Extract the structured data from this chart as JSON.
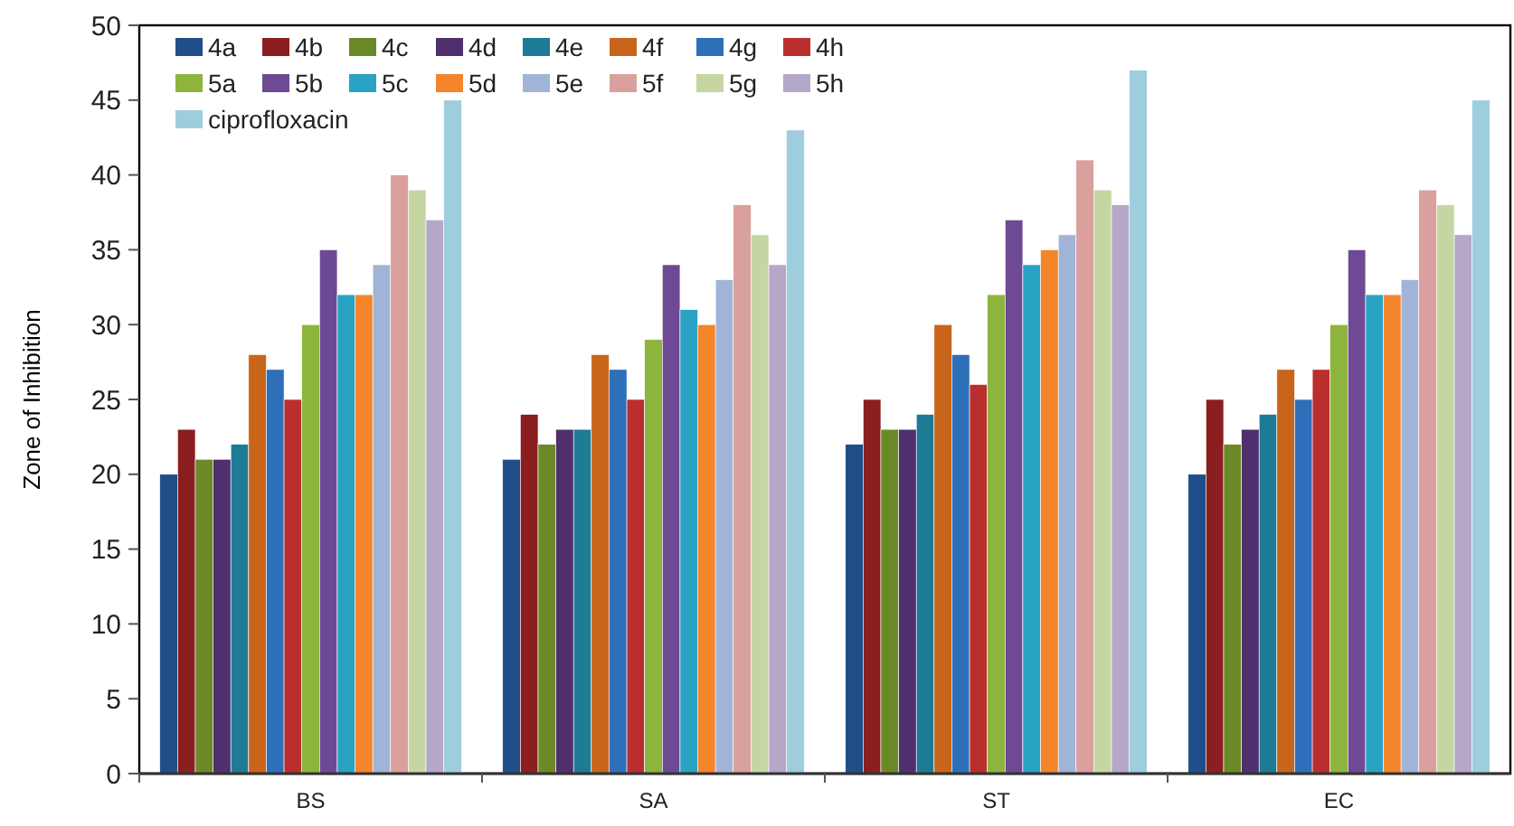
{
  "chart_data": {
    "type": "bar",
    "ylabel": "Zone of Inhibition",
    "categories": [
      "BS",
      "SA",
      "ST",
      "EC"
    ],
    "ylim": [
      0,
      50
    ],
    "yticks": [
      0,
      5,
      10,
      15,
      20,
      25,
      30,
      35,
      40,
      45,
      50
    ],
    "grid": false,
    "legend": "top left",
    "series": [
      {
        "name": "4a",
        "color": "#1f4e89",
        "values": [
          20,
          21,
          22,
          20
        ]
      },
      {
        "name": "4b",
        "color": "#8b1e1e",
        "values": [
          23,
          24,
          25,
          25
        ]
      },
      {
        "name": "4c",
        "color": "#6b8a27",
        "values": [
          21,
          22,
          23,
          22
        ]
      },
      {
        "name": "4d",
        "color": "#4f2f6e",
        "values": [
          21,
          23,
          23,
          23
        ]
      },
      {
        "name": "4e",
        "color": "#1e7b96",
        "values": [
          22,
          23,
          24,
          24
        ]
      },
      {
        "name": "4f",
        "color": "#c9651a",
        "values": [
          28,
          28,
          30,
          27
        ]
      },
      {
        "name": "4g",
        "color": "#2e6fba",
        "values": [
          27,
          27,
          28,
          25
        ]
      },
      {
        "name": "4h",
        "color": "#bb2e2e",
        "values": [
          25,
          25,
          26,
          27
        ]
      },
      {
        "name": "5a",
        "color": "#8db53d",
        "values": [
          30,
          29,
          32,
          30
        ]
      },
      {
        "name": "5b",
        "color": "#6e4a94",
        "values": [
          35,
          34,
          37,
          35
        ]
      },
      {
        "name": "5c",
        "color": "#29a3c4",
        "values": [
          32,
          31,
          34,
          32
        ]
      },
      {
        "name": "5d",
        "color": "#f5852a",
        "values": [
          32,
          30,
          35,
          32
        ]
      },
      {
        "name": "5e",
        "color": "#a0b4d8",
        "values": [
          34,
          33,
          36,
          33
        ]
      },
      {
        "name": "5f",
        "color": "#d9a09d",
        "values": [
          40,
          38,
          41,
          39
        ]
      },
      {
        "name": "5g",
        "color": "#c5d6a3",
        "values": [
          39,
          36,
          39,
          38
        ]
      },
      {
        "name": "5h",
        "color": "#b4a7c8",
        "values": [
          37,
          34,
          38,
          36
        ]
      },
      {
        "name": "ciprofloxacin",
        "color": "#9ecedd",
        "values": [
          45,
          43,
          47,
          45
        ]
      }
    ]
  }
}
